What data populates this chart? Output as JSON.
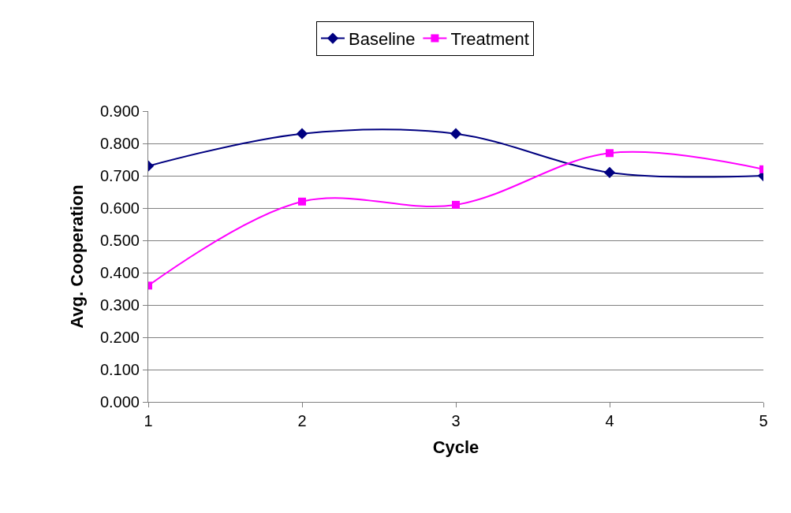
{
  "chart_data": {
    "type": "line",
    "xlabel": "Cycle",
    "ylabel": "Avg. Cooperation",
    "x": [
      1,
      2,
      3,
      4,
      5
    ],
    "series": [
      {
        "name": "Baseline",
        "color": "#000080",
        "marker": "diamond",
        "values": [
          0.73,
          0.83,
          0.83,
          0.71,
          0.7
        ]
      },
      {
        "name": "Treatment",
        "color": "#ff00ff",
        "marker": "square",
        "values": [
          0.36,
          0.62,
          0.61,
          0.77,
          0.72
        ]
      }
    ],
    "xlim": [
      1,
      5
    ],
    "xticks": [
      1,
      2,
      3,
      4,
      5
    ],
    "ylim": [
      0,
      0.9
    ],
    "yticks": [
      {
        "value": 0,
        "label": "0.000"
      },
      {
        "value": 0.1,
        "label": "0.100"
      },
      {
        "value": 0.2,
        "label": "0.200"
      },
      {
        "value": 0.3,
        "label": "0.300"
      },
      {
        "value": 0.4,
        "label": "0.400"
      },
      {
        "value": 0.5,
        "label": "0.500"
      },
      {
        "value": 0.6,
        "label": "0.600"
      },
      {
        "value": 0.7,
        "label": "0.700"
      },
      {
        "value": 0.8,
        "label": "0.800"
      },
      {
        "value": 0.9,
        "label": "0.900"
      }
    ],
    "grid": "y",
    "legend": "top",
    "line_style": "solid"
  }
}
